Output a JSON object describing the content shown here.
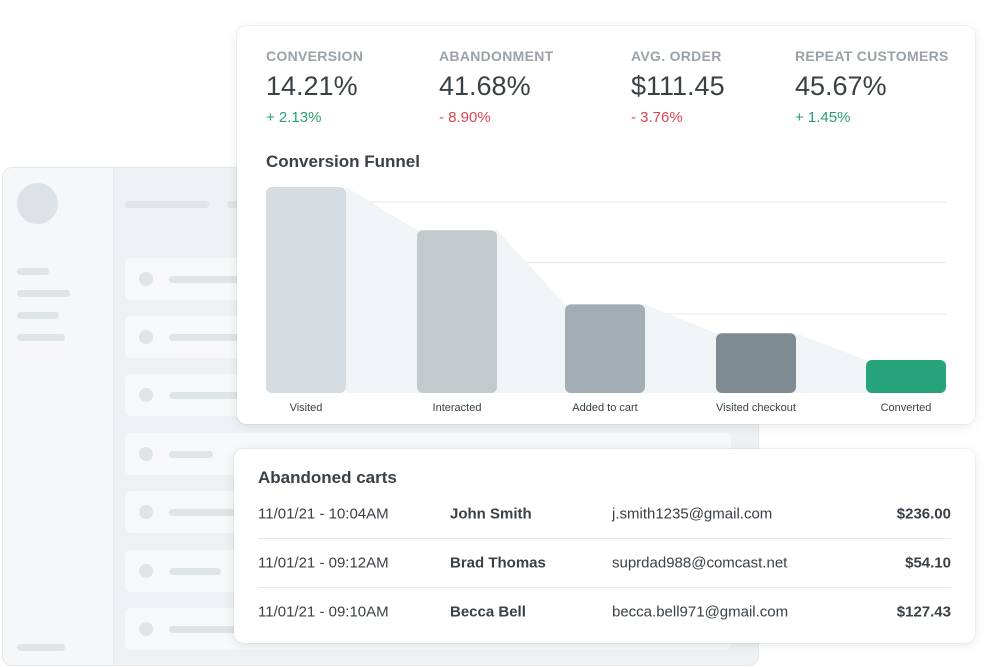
{
  "stats": [
    {
      "label": "CONVERSION",
      "value": "14.21%",
      "delta": "+ 2.13%",
      "direction": "up"
    },
    {
      "label": "ABANDONMENT",
      "value": "41.68%",
      "delta": "- 8.90%",
      "direction": "down"
    },
    {
      "label": "AVG. ORDER",
      "value": "$111.45",
      "delta": "- 3.76%",
      "direction": "down"
    },
    {
      "label": "REPEAT CUSTOMERS",
      "value": "45.67%",
      "delta": "+ 1.45%",
      "direction": "up"
    }
  ],
  "colors": {
    "positive": "#28a06e",
    "negative": "#d9464f",
    "funnel_stages": [
      "#d5dde2",
      "#c3cace",
      "#a2adb4",
      "#7e8b92",
      "#26a37a"
    ],
    "funnel_shade": "#f1f4f6"
  },
  "funnel": {
    "title": "Conversion Funnel",
    "chart_data": {
      "type": "bar",
      "categories": [
        "Visited",
        "Interacted",
        "Added to cart",
        "Visited checkout",
        "Converted"
      ],
      "values": [
        100,
        79,
        43,
        29,
        16
      ],
      "ylim": [
        0,
        100
      ],
      "grid": true
    }
  },
  "carts": {
    "title": "Abandoned carts",
    "rows": [
      {
        "time": "11/01/21 - 10:04AM",
        "name": "John Smith",
        "email": "j.smith1235@gmail.com",
        "amount": "$236.00"
      },
      {
        "time": "11/01/21 - 09:12AM",
        "name": "Brad Thomas",
        "email": "suprdad988@comcast.net",
        "amount": "$54.10"
      },
      {
        "time": "11/01/21 - 09:10AM",
        "name": "Becca Bell",
        "email": "becca.bell971@gmail.com",
        "amount": "$127.43"
      }
    ]
  }
}
